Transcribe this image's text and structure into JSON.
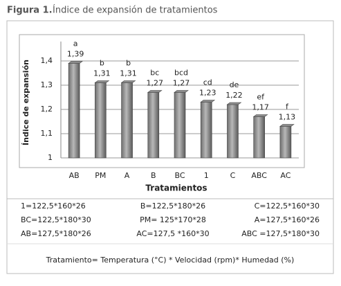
{
  "chart_data": {
    "type": "bar",
    "figure_label": "Figura 1.",
    "title": "Índice de expansión de tratamientos",
    "x_label": "Tratamientos",
    "y_label": "Índice de expansión",
    "categories": [
      "AB",
      "PM",
      "A",
      "B",
      "BC",
      "1",
      "C",
      "ABC",
      "AC"
    ],
    "values": [
      1.39,
      1.31,
      1.31,
      1.27,
      1.27,
      1.23,
      1.22,
      1.17,
      1.13
    ],
    "value_labels": [
      "1,39",
      "1,31",
      "1,31",
      "1,27",
      "1,27",
      "1,23",
      "1,22",
      "1,17",
      "1,13"
    ],
    "group_letters": [
      "a",
      "b",
      "b",
      "bc",
      "bcd",
      "cd",
      "de",
      "ef",
      "f"
    ],
    "color": "#8c8c8c",
    "ylim": [
      1,
      1.48
    ],
    "yticks": [
      1,
      {
        "value": 1.1,
        "label": "1,1"
      },
      {
        "value": 1.2,
        "label": "1,2"
      },
      {
        "value": 1.3,
        "label": "1,3"
      },
      {
        "value": 1.4,
        "label": "1,4"
      }
    ],
    "grid": true,
    "key": [
      [
        "1=122,5*160*26",
        "B=122,5*180*26",
        "C=122,5*160*30"
      ],
      [
        "BC=122,5*180*30",
        "PM= 125*170*28",
        "A=127,5*160*26"
      ],
      [
        "AB=127,5*180*26",
        "AC=127,5 *160*30",
        "ABC =127,5*180*30"
      ]
    ],
    "footnote": "Tratamiento= Temperatura  (°C) * Velocidad (rpm)* Humedad (%)"
  }
}
